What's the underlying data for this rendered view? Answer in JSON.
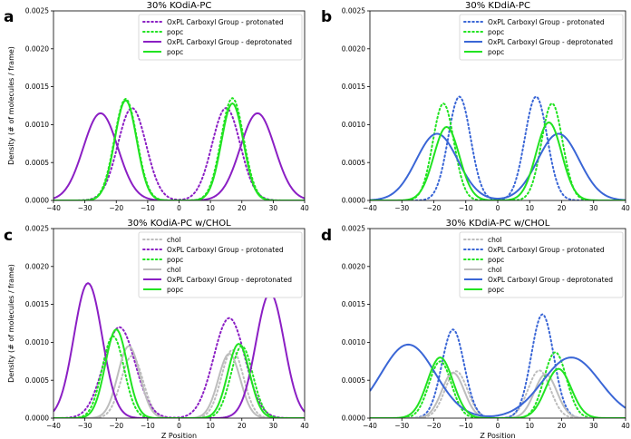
{
  "figure": {
    "shared_xlabel": "Z Position",
    "shared_ylabel": "Density (# of molecules / frame)"
  },
  "colors": {
    "purple": "#8B1FC4",
    "green": "#21E321",
    "blue": "#3A66D6",
    "gray": "#BDBDBD"
  },
  "chart_data": [
    {
      "panel_letter": "a",
      "type": "line",
      "title": "30% KOdiA-PC",
      "xlabel": "",
      "ylabel": "Density (# of molecules / frame)",
      "xlim": [
        -40,
        40
      ],
      "ylim": [
        0,
        0.0025
      ],
      "xticks": [
        -40,
        -30,
        -20,
        -10,
        0,
        10,
        20,
        30,
        40
      ],
      "yticks": [
        0.0,
        0.0005,
        0.001,
        0.0015,
        0.002,
        0.0025
      ],
      "ytick_labels": [
        "0.0000",
        "0.0005",
        "0.0010",
        "0.0015",
        "0.0020",
        "0.0025"
      ],
      "legend_position": "top-right",
      "series": [
        {
          "name": "OxPL Carboxyl Group - protonated",
          "color": "#8B1FC4",
          "style": "dotted",
          "peaks": [
            [
              -15,
              0.00122,
              4.5
            ],
            [
              15,
              0.00122,
              4.5
            ]
          ]
        },
        {
          "name": "popc",
          "color": "#21E321",
          "style": "dotted",
          "peaks": [
            [
              -17,
              0.00134,
              3.6
            ],
            [
              17,
              0.00135,
              3.6
            ]
          ]
        },
        {
          "name": "OxPL Carboxyl Group - deprotonated",
          "color": "#8B1FC4",
          "style": "solid",
          "peaks": [
            [
              -25,
              0.00115,
              5.5
            ],
            [
              25,
              0.00115,
              5.5
            ]
          ]
        },
        {
          "name": "popc",
          "color": "#21E321",
          "style": "solid",
          "peaks": [
            [
              -17,
              0.00132,
              3.5
            ],
            [
              17,
              0.00128,
              3.5
            ]
          ]
        }
      ]
    },
    {
      "panel_letter": "b",
      "type": "line",
      "title": "30% KDdiA-PC",
      "xlabel": "",
      "ylabel": "",
      "xlim": [
        -40,
        40
      ],
      "ylim": [
        0,
        0.0025
      ],
      "xticks": [
        -40,
        -30,
        -20,
        -10,
        0,
        10,
        20,
        30,
        40
      ],
      "yticks": [
        0.0,
        0.0005,
        0.001,
        0.0015,
        0.002,
        0.0025
      ],
      "ytick_labels": [
        "0.0000",
        "0.0005",
        "0.0010",
        "0.0015",
        "0.0020",
        "0.0025"
      ],
      "legend_position": "top-right",
      "series": [
        {
          "name": "OxPL Carboxyl Group - protonated",
          "color": "#3A66D6",
          "style": "dotted",
          "peaks": [
            [
              -12,
              0.00137,
              3.5
            ],
            [
              12,
              0.00137,
              3.5
            ]
          ]
        },
        {
          "name": "popc",
          "color": "#21E321",
          "style": "dotted",
          "peaks": [
            [
              -17,
              0.00128,
              3.3
            ],
            [
              17,
              0.00128,
              3.3
            ]
          ]
        },
        {
          "name": "OxPL Carboxyl Group - deprotonated",
          "color": "#3A66D6",
          "style": "solid",
          "peaks": [
            [
              -19,
              0.00088,
              6.5
            ],
            [
              19,
              0.00088,
              6.5
            ]
          ]
        },
        {
          "name": "popc",
          "color": "#21E321",
          "style": "solid",
          "peaks": [
            [
              -16,
              0.00097,
              4.0
            ],
            [
              16,
              0.00103,
              4.0
            ]
          ]
        }
      ]
    },
    {
      "panel_letter": "c",
      "type": "line",
      "title": "30% KOdiA-PC w/CHOL",
      "xlabel": "Z Position",
      "ylabel": "Density (# of molecules / frame)",
      "xlim": [
        -40,
        40
      ],
      "ylim": [
        0,
        0.0025
      ],
      "xticks": [
        -40,
        -30,
        -20,
        -10,
        0,
        10,
        20,
        30,
        40
      ],
      "yticks": [
        0.0,
        0.0005,
        0.001,
        0.0015,
        0.002,
        0.0025
      ],
      "ytick_labels": [
        "0.0000",
        "0.0005",
        "0.0010",
        "0.0015",
        "0.0020",
        "0.0025"
      ],
      "legend_position": "top-right",
      "series": [
        {
          "name": "chol",
          "color": "#BDBDBD",
          "style": "dotted",
          "peaks": [
            [
              -15,
              0.00082,
              3.5
            ],
            [
              17,
              0.0009,
              3.5
            ]
          ]
        },
        {
          "name": "OxPL Carboxyl Group - protonated",
          "color": "#8B1FC4",
          "style": "dotted",
          "peaks": [
            [
              -19,
              0.0012,
              5.0
            ],
            [
              16,
              0.00132,
              5.0
            ]
          ]
        },
        {
          "name": "popc",
          "color": "#21E321",
          "style": "dotted",
          "peaks": [
            [
              -21,
              0.00108,
              3.5
            ],
            [
              20,
              0.00095,
              3.5
            ]
          ]
        },
        {
          "name": "chol",
          "color": "#BDBDBD",
          "style": "solid",
          "peaks": [
            [
              -16,
              0.00095,
              3.5
            ],
            [
              16,
              0.00085,
              3.5
            ]
          ]
        },
        {
          "name": "OxPL Carboxyl Group - deprotonated",
          "color": "#8B1FC4",
          "style": "solid",
          "peaks": [
            [
              -29,
              0.00178,
              4.5
            ],
            [
              29,
              0.00165,
              4.5
            ]
          ]
        },
        {
          "name": "popc",
          "color": "#21E321",
          "style": "solid",
          "peaks": [
            [
              -20,
              0.00117,
              3.5
            ],
            [
              19,
              0.00098,
              3.5
            ]
          ]
        }
      ]
    },
    {
      "panel_letter": "d",
      "type": "line",
      "title": "30% KDdiA-PC w/CHOL",
      "xlabel": "Z Position",
      "ylabel": "",
      "xlim": [
        -40,
        40
      ],
      "ylim": [
        0,
        0.0025
      ],
      "xticks": [
        -40,
        -30,
        -20,
        -10,
        0,
        10,
        20,
        30,
        40
      ],
      "yticks": [
        0.0,
        0.0005,
        0.001,
        0.0015,
        0.002,
        0.0025
      ],
      "ytick_labels": [
        "0.0000",
        "0.0005",
        "0.0010",
        "0.0015",
        "0.0020",
        "0.0025"
      ],
      "legend_position": "top-right",
      "series": [
        {
          "name": "chol",
          "color": "#BDBDBD",
          "style": "dotted",
          "peaks": [
            [
              -13,
              0.00062,
              3.5
            ],
            [
              13,
              0.00063,
              3.5
            ]
          ]
        },
        {
          "name": "OxPL Carboxyl Group - protonated",
          "color": "#3A66D6",
          "style": "dotted",
          "peaks": [
            [
              -14,
              0.00117,
              3.5
            ],
            [
              14,
              0.00137,
              3.5
            ]
          ]
        },
        {
          "name": "popc",
          "color": "#21E321",
          "style": "dotted",
          "peaks": [
            [
              -18,
              0.00075,
              3.5
            ],
            [
              18,
              0.00087,
              3.5
            ]
          ]
        },
        {
          "name": "chol",
          "color": "#BDBDBD",
          "style": "solid",
          "peaks": [
            [
              -14,
              0.0006,
              3.5
            ],
            [
              15,
              0.00058,
              3.5
            ]
          ]
        },
        {
          "name": "OxPL Carboxyl Group - deprotonated",
          "color": "#3A66D6",
          "style": "solid",
          "peaks": [
            [
              -28,
              0.00097,
              8.5
            ],
            [
              23,
              0.0008,
              9.0
            ]
          ]
        },
        {
          "name": "popc",
          "color": "#21E321",
          "style": "solid",
          "peaks": [
            [
              -18,
              0.0008,
              4.0
            ],
            [
              19,
              0.00065,
              4.0
            ]
          ]
        }
      ]
    }
  ]
}
